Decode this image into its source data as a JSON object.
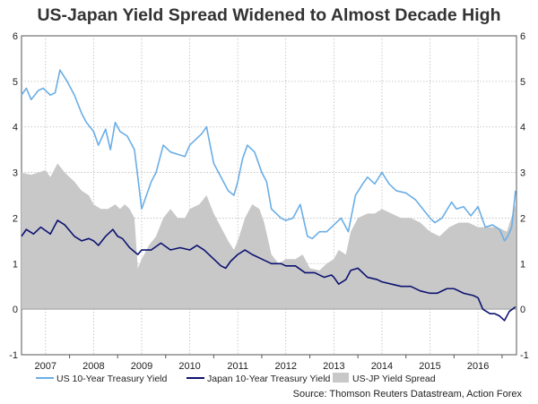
{
  "chart_data": {
    "type": "line",
    "title": "US-Japan Yield Spread Widened to Almost Decade High",
    "xlabel": "",
    "ylabel": "",
    "xlim": [
      2006.5,
      2016.8
    ],
    "ylim": [
      -1,
      6
    ],
    "y_ticks": [
      -1,
      0,
      1,
      2,
      3,
      4,
      5,
      6
    ],
    "y_tick_labels": [
      "-1",
      "0",
      "1",
      "2",
      "3",
      "4",
      "5",
      "6"
    ],
    "x_tick_labels": [
      "2007",
      "2008",
      "2009",
      "2010",
      "2011",
      "2012",
      "2013",
      "2014",
      "2015",
      "2016"
    ],
    "x_tick_positions": [
      2007,
      2008,
      2009,
      2010,
      2011,
      2012,
      2013,
      2014,
      2015,
      2016
    ],
    "grid": true,
    "legend_position": "bottom",
    "colors": {
      "us": "#6aaee6",
      "jp": "#0d1270",
      "spread": "#c8c8c8",
      "grid": "#bbbbbb"
    },
    "series": [
      {
        "name": "US 10-Year Treasury Yield",
        "x": [
          2006.5,
          2006.6,
          2006.7,
          2006.85,
          2006.95,
          2007.05,
          2007.1,
          2007.2,
          2007.3,
          2007.45,
          2007.6,
          2007.75,
          2007.85,
          2008.0,
          2008.1,
          2008.25,
          2008.35,
          2008.45,
          2008.55,
          2008.7,
          2008.85,
          2008.92,
          2009.0,
          2009.1,
          2009.2,
          2009.3,
          2009.45,
          2009.6,
          2009.75,
          2009.9,
          2010.0,
          2010.1,
          2010.25,
          2010.35,
          2010.5,
          2010.65,
          2010.8,
          2010.92,
          2011.0,
          2011.1,
          2011.2,
          2011.35,
          2011.5,
          2011.6,
          2011.7,
          2011.8,
          2011.9,
          2012.0,
          2012.15,
          2012.3,
          2012.45,
          2012.55,
          2012.7,
          2012.85,
          2013.0,
          2013.15,
          2013.3,
          2013.45,
          2013.6,
          2013.7,
          2013.85,
          2014.0,
          2014.15,
          2014.3,
          2014.5,
          2014.7,
          2014.85,
          2015.0,
          2015.1,
          2015.25,
          2015.45,
          2015.55,
          2015.7,
          2015.85,
          2016.0,
          2016.15,
          2016.3,
          2016.45,
          2016.55,
          2016.62,
          2016.7,
          2016.78
        ],
        "values": [
          4.7,
          4.85,
          4.6,
          4.8,
          4.85,
          4.75,
          4.7,
          4.75,
          5.25,
          5.0,
          4.7,
          4.3,
          4.1,
          3.9,
          3.6,
          3.95,
          3.5,
          4.1,
          3.9,
          3.8,
          3.5,
          2.9,
          2.2,
          2.5,
          2.8,
          3.0,
          3.6,
          3.45,
          3.4,
          3.35,
          3.6,
          3.7,
          3.85,
          4.0,
          3.2,
          2.9,
          2.6,
          2.5,
          2.8,
          3.3,
          3.6,
          3.45,
          3.0,
          2.8,
          2.2,
          2.1,
          2.0,
          1.95,
          2.0,
          2.3,
          1.6,
          1.55,
          1.7,
          1.7,
          1.85,
          2.0,
          1.7,
          2.5,
          2.75,
          2.9,
          2.75,
          3.0,
          2.75,
          2.6,
          2.55,
          2.4,
          2.2,
          2.0,
          1.9,
          2.0,
          2.35,
          2.2,
          2.25,
          2.05,
          2.25,
          1.8,
          1.85,
          1.75,
          1.5,
          1.6,
          1.8,
          2.6
        ]
      },
      {
        "name": "Japan 10-Year Treasury Yield",
        "x": [
          2006.5,
          2006.6,
          2006.75,
          2006.9,
          2007.1,
          2007.25,
          2007.4,
          2007.6,
          2007.75,
          2007.9,
          2008.0,
          2008.1,
          2008.25,
          2008.4,
          2008.5,
          2008.6,
          2008.75,
          2008.92,
          2009.0,
          2009.2,
          2009.4,
          2009.6,
          2009.8,
          2010.0,
          2010.15,
          2010.3,
          2010.5,
          2010.65,
          2010.75,
          2010.85,
          2011.0,
          2011.15,
          2011.3,
          2011.5,
          2011.7,
          2011.9,
          2012.0,
          2012.2,
          2012.4,
          2012.6,
          2012.8,
          2012.95,
          2013.0,
          2013.1,
          2013.25,
          2013.35,
          2013.5,
          2013.7,
          2013.9,
          2014.0,
          2014.2,
          2014.4,
          2014.6,
          2014.8,
          2015.0,
          2015.15,
          2015.35,
          2015.5,
          2015.7,
          2015.9,
          2016.0,
          2016.1,
          2016.25,
          2016.35,
          2016.45,
          2016.55,
          2016.65,
          2016.78
        ],
        "values": [
          1.6,
          1.75,
          1.65,
          1.8,
          1.65,
          1.95,
          1.85,
          1.6,
          1.5,
          1.55,
          1.5,
          1.4,
          1.6,
          1.75,
          1.6,
          1.55,
          1.35,
          1.2,
          1.3,
          1.3,
          1.45,
          1.3,
          1.35,
          1.3,
          1.4,
          1.3,
          1.1,
          0.95,
          0.9,
          1.05,
          1.2,
          1.3,
          1.2,
          1.1,
          1.0,
          1.0,
          0.95,
          0.95,
          0.8,
          0.8,
          0.7,
          0.75,
          0.7,
          0.55,
          0.65,
          0.85,
          0.9,
          0.7,
          0.65,
          0.6,
          0.55,
          0.5,
          0.5,
          0.4,
          0.35,
          0.35,
          0.45,
          0.45,
          0.35,
          0.3,
          0.25,
          0.0,
          -0.1,
          -0.1,
          -0.15,
          -0.25,
          -0.05,
          0.05
        ]
      },
      {
        "name": "US-JP Yield Spread",
        "x": [
          2006.5,
          2006.7,
          2006.85,
          2007.0,
          2007.1,
          2007.25,
          2007.4,
          2007.6,
          2007.75,
          2007.9,
          2008.0,
          2008.15,
          2008.3,
          2008.45,
          2008.55,
          2008.65,
          2008.75,
          2008.85,
          2008.92,
          2009.0,
          2009.15,
          2009.3,
          2009.45,
          2009.6,
          2009.75,
          2009.9,
          2010.0,
          2010.2,
          2010.35,
          2010.5,
          2010.65,
          2010.8,
          2010.92,
          2011.0,
          2011.15,
          2011.3,
          2011.45,
          2011.55,
          2011.7,
          2011.85,
          2012.0,
          2012.2,
          2012.35,
          2012.5,
          2012.7,
          2012.85,
          2013.0,
          2013.1,
          2013.25,
          2013.35,
          2013.5,
          2013.7,
          2013.85,
          2014.0,
          2014.2,
          2014.4,
          2014.6,
          2014.8,
          2015.0,
          2015.2,
          2015.4,
          2015.6,
          2015.8,
          2016.0,
          2016.2,
          2016.4,
          2016.6,
          2016.78
        ],
        "values": [
          3.0,
          2.95,
          3.0,
          3.05,
          2.9,
          3.2,
          3.0,
          2.8,
          2.6,
          2.5,
          2.3,
          2.2,
          2.2,
          2.3,
          2.2,
          2.3,
          2.2,
          2.0,
          0.9,
          1.1,
          1.4,
          1.6,
          2.0,
          2.2,
          2.0,
          2.0,
          2.2,
          2.3,
          2.5,
          2.1,
          1.8,
          1.5,
          1.3,
          1.5,
          2.0,
          2.3,
          2.2,
          1.9,
          1.2,
          1.0,
          1.1,
          1.1,
          1.2,
          0.9,
          0.85,
          1.0,
          1.1,
          1.3,
          1.2,
          1.7,
          2.0,
          2.1,
          2.1,
          2.2,
          2.1,
          2.0,
          2.0,
          1.9,
          1.7,
          1.6,
          1.8,
          1.9,
          1.9,
          1.8,
          1.8,
          1.8,
          1.7,
          2.3
        ]
      }
    ],
    "source": "Source: Thomson Reuters Datastream, Action Forex"
  }
}
